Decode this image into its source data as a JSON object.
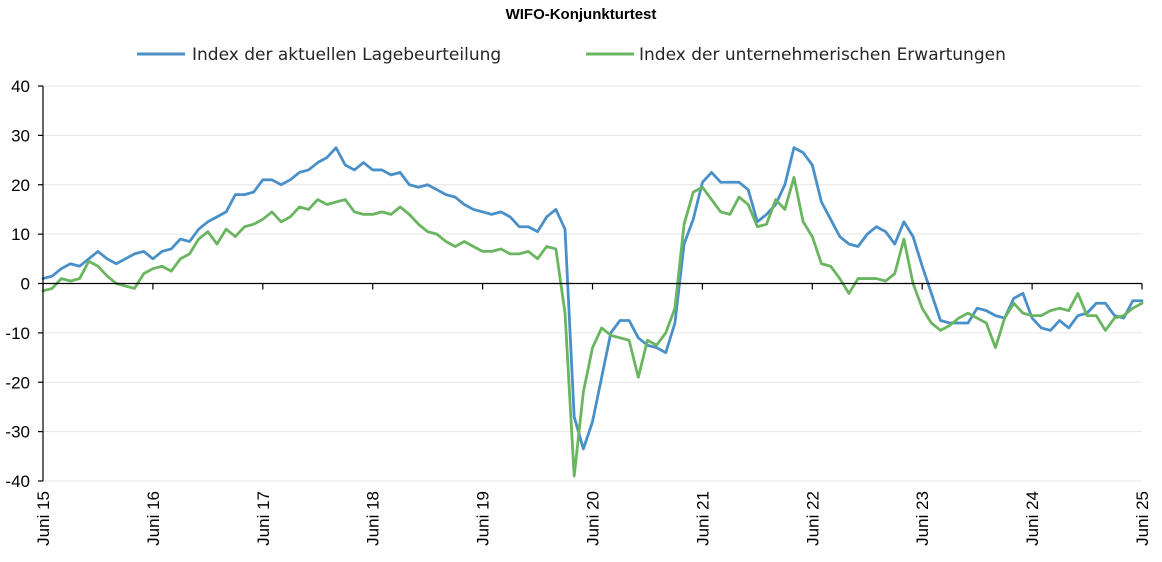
{
  "chart_data": {
    "type": "line",
    "title": "WIFO-Konjunkturtest",
    "legend_position": "top",
    "grid": true,
    "ylim": [
      -40,
      40
    ],
    "yticks": [
      -40,
      -30,
      -20,
      -10,
      0,
      10,
      20,
      30,
      40
    ],
    "x_start": "2015-06",
    "x_end": "2025-06",
    "xtick_labels": [
      "Juni 15",
      "Juni 16",
      "Juni 17",
      "Juni 18",
      "Juni 19",
      "Juni 20",
      "Juni 21",
      "Juni 22",
      "Juni 23",
      "Juni 24",
      "Juni 25"
    ],
    "series": [
      {
        "name": "Index der aktuellen Lagebeurteilung",
        "color": "#4a90c8",
        "values": [
          1,
          1.5,
          3,
          4,
          3.5,
          5,
          6.5,
          5,
          4,
          5,
          6,
          6.5,
          5,
          6.5,
          7,
          9,
          8.5,
          11,
          12.5,
          13.5,
          14.5,
          18,
          18,
          18.5,
          21,
          21,
          20,
          21,
          22.5,
          23,
          24.5,
          25.5,
          27.5,
          24,
          23,
          24.5,
          23,
          23,
          22,
          22.5,
          20,
          19.5,
          20,
          19,
          18,
          17.5,
          16,
          15,
          14.5,
          14,
          14.5,
          13.5,
          11.5,
          11.5,
          10.5,
          13.5,
          15,
          11,
          -27,
          -33.5,
          -28,
          -19,
          -10,
          -7.5,
          -7.5,
          -11,
          -12.5,
          -13,
          -14,
          -8,
          8,
          13,
          20.5,
          22.5,
          20.5,
          20.5,
          20.5,
          19,
          12.5,
          14,
          16,
          20,
          27.5,
          26.5,
          24,
          16.5,
          13,
          9.5,
          8,
          7.5,
          10,
          11.5,
          10.5,
          8,
          12.5,
          9.5,
          3.5,
          -2,
          -7.5,
          -8,
          -8,
          -8,
          -5,
          -5.5,
          -6.5,
          -7,
          -3,
          -2,
          -7,
          -9,
          -9.5,
          -7.5,
          -9,
          -6.5,
          -6,
          -4,
          -4,
          -6.5,
          -7,
          -3.5,
          -3.5
        ]
      },
      {
        "name": "Index der unternehmerischen Erwartungen",
        "color": "#6ab55f",
        "values": [
          -1.5,
          -1,
          1,
          0.5,
          1,
          4.5,
          3.5,
          1.5,
          0,
          -0.5,
          -1,
          2,
          3,
          3.5,
          2.5,
          5,
          6,
          9,
          10.5,
          8,
          11,
          9.5,
          11.5,
          12,
          13,
          14.5,
          12.5,
          13.5,
          15.5,
          15,
          17,
          16,
          16.5,
          17,
          14.5,
          14,
          14,
          14.5,
          14,
          15.5,
          14,
          12,
          10.5,
          10,
          8.5,
          7.5,
          8.5,
          7.5,
          6.5,
          6.5,
          7,
          6,
          6,
          6.5,
          5,
          7.5,
          7,
          -6,
          -39,
          -22,
          -13,
          -9,
          -10.5,
          -11,
          -11.5,
          -19,
          -11.5,
          -12.5,
          -10,
          -5,
          12,
          18.5,
          19.5,
          17,
          14.5,
          14,
          17.5,
          16,
          11.5,
          12,
          17,
          15,
          21.5,
          12.5,
          9.5,
          4,
          3.5,
          1,
          -2,
          1,
          1,
          1,
          0.5,
          2,
          9,
          0,
          -5,
          -8,
          -9.5,
          -8.5,
          -7,
          -6,
          -7,
          -8,
          -13,
          -7,
          -4,
          -6,
          -6.5,
          -6.5,
          -5.5,
          -5,
          -5.5,
          -2,
          -6.5,
          -6.5,
          -9.5,
          -7,
          -6.5,
          -5,
          -4
        ]
      }
    ]
  }
}
